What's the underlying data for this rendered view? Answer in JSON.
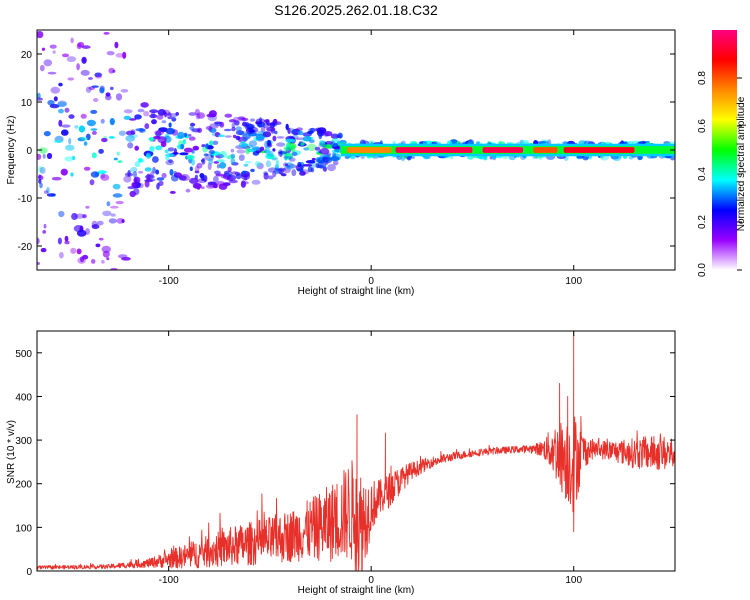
{
  "title": "S126.2025.262.01.18.C32",
  "chart_data": [
    {
      "type": "heatmap",
      "title": "S126.2025.262.01.18.C32",
      "xlabel": "Height of straight line (km)",
      "ylabel": "Frequency (Hz)",
      "xlim": [
        -165,
        150
      ],
      "ylim": [
        -25,
        25
      ],
      "x_ticks": [
        -100,
        0,
        100
      ],
      "x_tick_labels": [
        "-100",
        "0",
        "100"
      ],
      "y_ticks": [
        -20,
        -10,
        0,
        10,
        20
      ],
      "y_tick_labels": [
        "-20",
        "-10",
        "0",
        "10",
        "20"
      ],
      "colorbar": {
        "label": "Normalized spectral amplitude",
        "range": [
          0,
          1
        ],
        "ticks": [
          0.0,
          0.2,
          0.4,
          0.6,
          0.8
        ],
        "tick_labels": [
          "0.0",
          "0.2",
          "0.4",
          "0.6",
          "0.8"
        ],
        "colors": [
          "#ffffff",
          "#9900ff",
          "#0000ff",
          "#00ffff",
          "#00ff00",
          "#ffff00",
          "#ff8800",
          "#ff0000",
          "#ff0080"
        ]
      },
      "band_segments": [
        {
          "x0": -12,
          "x1": 10,
          "level": 0.75
        },
        {
          "x0": 12,
          "x1": 50,
          "level": 0.95
        },
        {
          "x0": 55,
          "x1": 75,
          "level": 0.95
        },
        {
          "x0": 80,
          "x1": 92,
          "level": 0.8
        },
        {
          "x0": 95,
          "x1": 130,
          "level": 0.9
        }
      ]
    },
    {
      "type": "line",
      "xlabel": "Height of straight line (km)",
      "ylabel": "SNR (10 * v/v)",
      "xlim": [
        -165,
        150
      ],
      "ylim": [
        0,
        550
      ],
      "x_ticks": [
        -100,
        0,
        100
      ],
      "x_tick_labels": [
        "-100",
        "0",
        "100"
      ],
      "y_ticks": [
        0,
        100,
        200,
        300,
        400,
        500
      ],
      "y_tick_labels": [
        "0",
        "100",
        "200",
        "300",
        "400",
        "500"
      ],
      "series": [
        {
          "name": "SNR",
          "color": "#e8302a",
          "envelope_x": [
            -165,
            -130,
            -110,
            -90,
            -70,
            -50,
            -40,
            -30,
            -20,
            -15,
            -10,
            -5,
            0,
            5,
            10,
            20,
            30,
            40,
            50,
            60,
            70,
            80,
            85,
            90,
            95,
            100,
            105,
            110,
            120,
            130,
            140,
            150
          ],
          "envelope_base": [
            8,
            10,
            18,
            35,
            55,
            70,
            80,
            95,
            110,
            125,
            140,
            100,
            150,
            170,
            190,
            230,
            250,
            262,
            270,
            275,
            278,
            280,
            280,
            278,
            260,
            250,
            275,
            280,
            275,
            270,
            270,
            270
          ],
          "envelope_amp": [
            4,
            5,
            10,
            30,
            45,
            55,
            60,
            70,
            90,
            100,
            120,
            140,
            60,
            40,
            40,
            20,
            12,
            10,
            8,
            8,
            8,
            10,
            20,
            60,
            90,
            120,
            40,
            20,
            25,
            35,
            40,
            40
          ],
          "spikes": [
            {
              "x": -7,
              "y": 358
            },
            {
              "x": 7,
              "y": 316
            },
            {
              "x": 93,
              "y": 430
            },
            {
              "x": 97,
              "y": 400
            },
            {
              "x": 100,
              "y": 550
            },
            {
              "x": 100,
              "y": 90
            }
          ]
        }
      ]
    }
  ]
}
